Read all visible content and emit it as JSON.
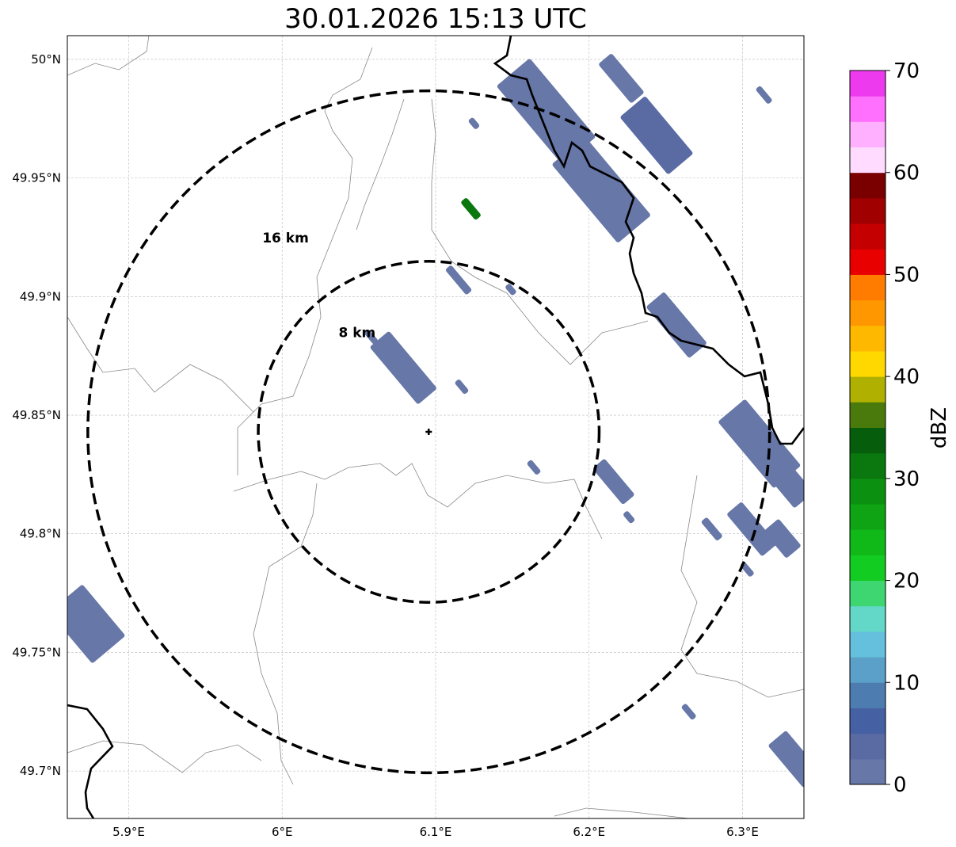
{
  "chart_data": {
    "type": "heatmap",
    "title": "30.01.2026 15:13 UTC",
    "xlim": [
      5.86,
      6.34
    ],
    "ylim": [
      49.68,
      50.01
    ],
    "x_ticks": [
      {
        "v": 5.9,
        "label": "5.9°E"
      },
      {
        "v": 6.0,
        "label": "6°E"
      },
      {
        "v": 6.1,
        "label": "6.1°E"
      },
      {
        "v": 6.2,
        "label": "6.2°E"
      },
      {
        "v": 6.3,
        "label": "6.3°E"
      }
    ],
    "y_ticks": [
      {
        "v": 50.0,
        "label": "50°N"
      },
      {
        "v": 49.95,
        "label": "49.95°N"
      },
      {
        "v": 49.9,
        "label": "49.9°N"
      },
      {
        "v": 49.85,
        "label": "49.85°N"
      },
      {
        "v": 49.8,
        "label": "49.8°N"
      },
      {
        "v": 49.75,
        "label": "49.75°N"
      },
      {
        "v": 49.7,
        "label": "49.7°N"
      }
    ],
    "grid": true,
    "radar_center": {
      "lon": 6.0955,
      "lat": 49.843
    },
    "range_rings": [
      {
        "km": 8,
        "label": "8 km"
      },
      {
        "km": 16,
        "label": "16 km"
      }
    ],
    "colorbar": {
      "label": "dBZ",
      "min": 0,
      "max": 70,
      "step": 2.5,
      "ticks": [
        "0",
        "10",
        "20",
        "30",
        "40",
        "50",
        "60",
        "70"
      ],
      "colors": [
        "#6677a8",
        "#5a6aa3",
        "#4560a3",
        "#4d7db0",
        "#5aa0c8",
        "#64c0dc",
        "#64d8c8",
        "#3ed670",
        "#12cc22",
        "#10b818",
        "#0ea414",
        "#0c9010",
        "#0a780e",
        "#065e0c",
        "#4a7a0c",
        "#b0b000",
        "#ffd800",
        "#ffb800",
        "#ff9800",
        "#ff7c00",
        "#e80000",
        "#c40000",
        "#a00000",
        "#7a0000",
        "#ffdcff",
        "#ffb0ff",
        "#ff70ff",
        "#ee3aee"
      ]
    },
    "echoes": [
      {
        "lon": 6.172,
        "lat": 49.978,
        "dbz": 2
      },
      {
        "lon": 6.208,
        "lat": 49.945,
        "dbz": 2
      },
      {
        "lon": 6.244,
        "lat": 49.968,
        "dbz": 3
      },
      {
        "lon": 6.257,
        "lat": 49.888,
        "dbz": 2
      },
      {
        "lon": 6.311,
        "lat": 49.838,
        "dbz": 2
      },
      {
        "lon": 6.326,
        "lat": 49.825,
        "dbz": 2
      },
      {
        "lon": 6.306,
        "lat": 49.802,
        "dbz": 1
      },
      {
        "lon": 6.326,
        "lat": 49.798,
        "dbz": 1
      },
      {
        "lon": 6.079,
        "lat": 49.87,
        "dbz": 1
      },
      {
        "lon": 5.873,
        "lat": 49.762,
        "dbz": 2
      },
      {
        "lon": 6.334,
        "lat": 49.705,
        "dbz": 2
      },
      {
        "lon": 6.216,
        "lat": 49.822,
        "dbz": 1
      },
      {
        "lon": 6.265,
        "lat": 49.725,
        "dbz": 1
      },
      {
        "lon": 6.221,
        "lat": 49.992,
        "dbz": 1
      },
      {
        "lon": 6.314,
        "lat": 49.985,
        "dbz": 1
      },
      {
        "lon": 6.115,
        "lat": 49.907,
        "dbz": 1
      },
      {
        "lon": 6.164,
        "lat": 49.828,
        "dbz": 1
      },
      {
        "lon": 6.058,
        "lat": 49.883,
        "dbz": 1
      },
      {
        "lon": 6.117,
        "lat": 49.862,
        "dbz": 1
      },
      {
        "lon": 6.125,
        "lat": 49.973,
        "dbz": 1
      },
      {
        "lon": 6.149,
        "lat": 49.903,
        "dbz": 1
      },
      {
        "lon": 6.303,
        "lat": 49.785,
        "dbz": 1
      },
      {
        "lon": 6.226,
        "lat": 49.807,
        "dbz": 1
      },
      {
        "lon": 6.28,
        "lat": 49.802,
        "dbz": 1
      },
      {
        "lon": 6.123,
        "lat": 49.937,
        "dbz": 30
      }
    ]
  }
}
